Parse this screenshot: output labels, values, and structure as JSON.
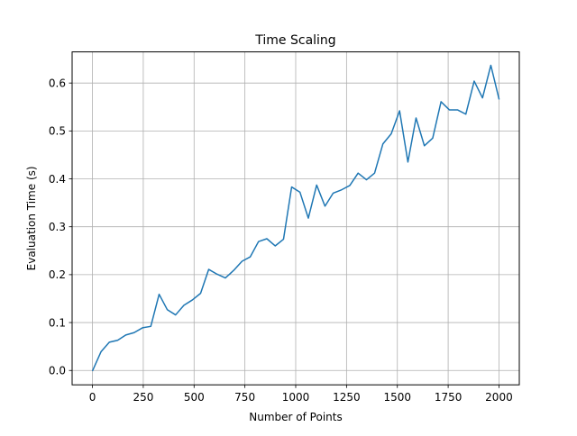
{
  "chart_data": {
    "type": "line",
    "title": "Time Scaling",
    "xlabel": "Number of Points",
    "ylabel": "Evaluation Time (s)",
    "xlim": [
      -100,
      2100
    ],
    "ylim": [
      -0.03,
      0.665
    ],
    "xticks": [
      0,
      250,
      500,
      750,
      1000,
      1250,
      1500,
      1750,
      2000
    ],
    "xtick_labels": [
      "0",
      "250",
      "500",
      "750",
      "1000",
      "1250",
      "1500",
      "1750",
      "2000"
    ],
    "yticks": [
      0.0,
      0.1,
      0.2,
      0.3,
      0.4,
      0.5,
      0.6
    ],
    "ytick_labels": [
      "0.0",
      "0.1",
      "0.2",
      "0.3",
      "0.4",
      "0.5",
      "0.6"
    ],
    "grid": true,
    "line_color": "#1f77b4",
    "series": [
      {
        "x": [
          1,
          42,
          83,
          124,
          164,
          205,
          246,
          287,
          328,
          368,
          409,
          450,
          491,
          532,
          572,
          613,
          654,
          695,
          736,
          776,
          817,
          858,
          899,
          940,
          980,
          1021,
          1062,
          1103,
          1144,
          1184,
          1225,
          1266,
          1307,
          1348,
          1388,
          1429,
          1470,
          1511,
          1552,
          1592,
          1633,
          1674,
          1715,
          1756,
          1796,
          1837,
          1878,
          1919,
          1960,
          2000
        ],
        "y": [
          0.0,
          0.039,
          0.059,
          0.063,
          0.074,
          0.079,
          0.089,
          0.092,
          0.159,
          0.127,
          0.116,
          0.136,
          0.147,
          0.161,
          0.211,
          0.201,
          0.193,
          0.209,
          0.228,
          0.237,
          0.269,
          0.275,
          0.26,
          0.274,
          0.383,
          0.372,
          0.318,
          0.387,
          0.343,
          0.37,
          0.377,
          0.386,
          0.412,
          0.398,
          0.412,
          0.473,
          0.494,
          0.542,
          0.435,
          0.527,
          0.469,
          0.485,
          0.561,
          0.544,
          0.544,
          0.535,
          0.604,
          0.569,
          0.637,
          0.567
        ]
      }
    ]
  }
}
